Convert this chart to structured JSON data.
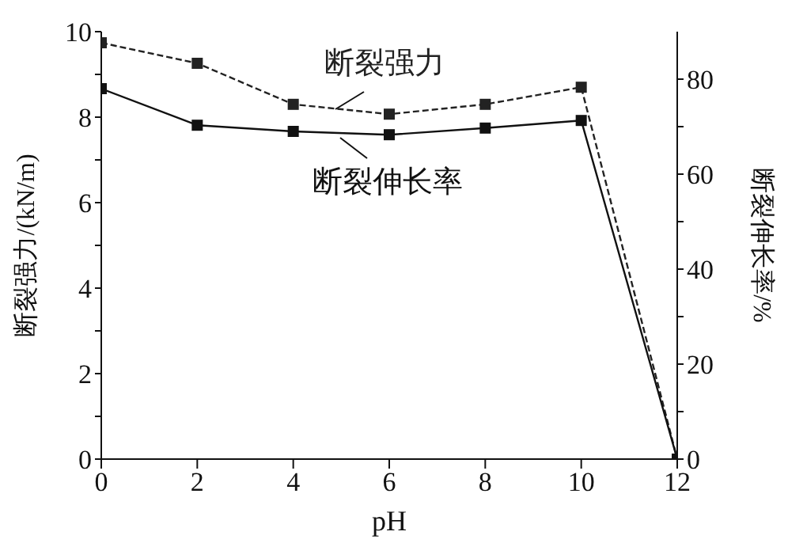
{
  "chart_data": {
    "type": "line",
    "xlabel": "pH",
    "ylabel": "断裂强力/(kN/m)",
    "y2label": "断裂伸长率/%",
    "x": [
      0,
      2,
      4,
      6,
      8,
      10,
      12
    ],
    "series": [
      {
        "name": "断裂强力",
        "color": "#222222",
        "line_style": "dashed",
        "values": [
          9.74,
          9.26,
          8.3,
          8.07,
          8.3,
          8.7,
          0
        ]
      },
      {
        "name": "断裂伸长率",
        "color": "#111111",
        "line_style": "solid",
        "axis": "y2",
        "values": [
          78,
          70.3,
          69,
          68.3,
          69.7,
          71.3,
          0
        ]
      }
    ],
    "xlim": [
      0,
      12
    ],
    "xticks": [
      0,
      2,
      4,
      6,
      8,
      10,
      12
    ],
    "ylim": [
      0,
      10
    ],
    "yticks": [
      0,
      {
        "value": 1,
        "label": null
      },
      2,
      {
        "value": 3,
        "label": null
      },
      4,
      {
        "value": 5,
        "label": null
      },
      6,
      {
        "value": 7,
        "label": null
      },
      8,
      {
        "value": 9,
        "label": null
      },
      10
    ],
    "y2lim": [
      0,
      90
    ],
    "y2ticks": [
      0,
      {
        "value": 10,
        "label": null
      },
      20,
      {
        "value": 30,
        "label": null
      },
      40,
      {
        "value": 50,
        "label": null
      },
      60,
      {
        "value": 70,
        "label": null
      },
      80
    ],
    "marker": "square"
  }
}
